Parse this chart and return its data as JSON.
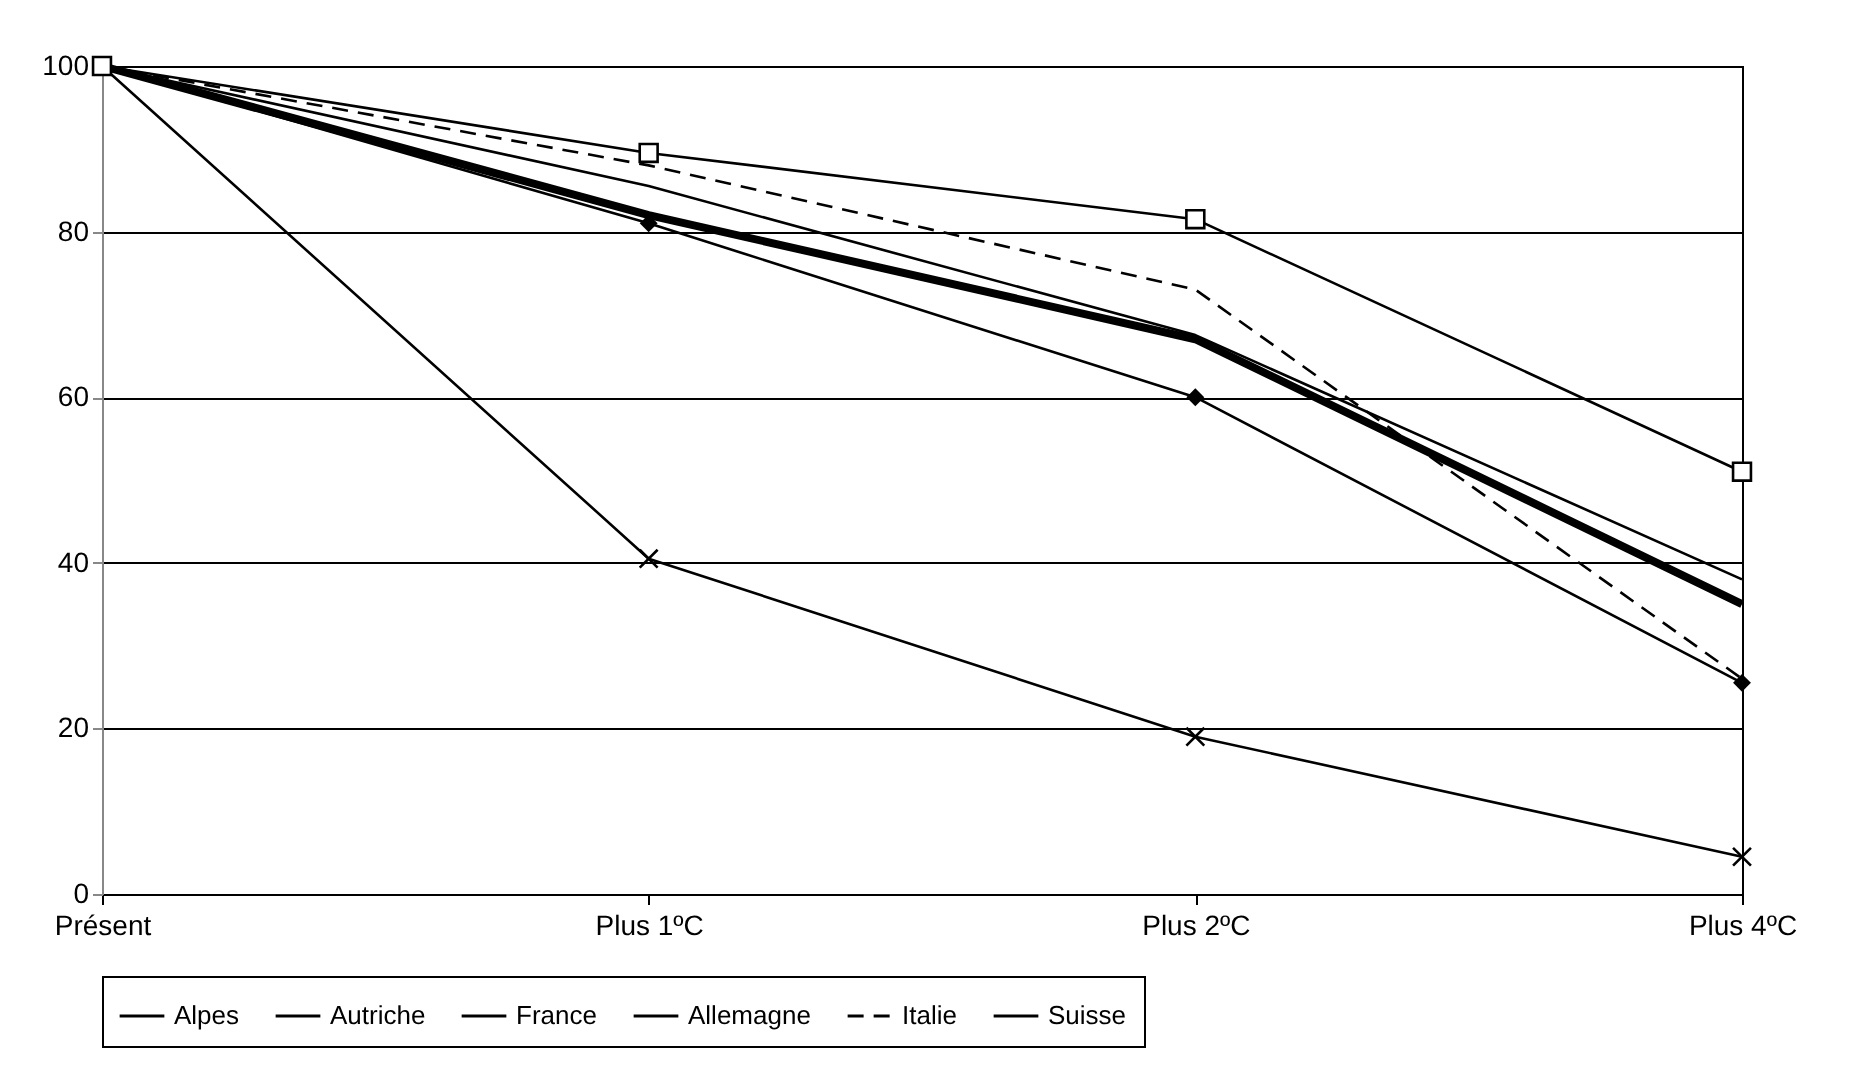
{
  "chart_data": {
    "type": "line",
    "categories": [
      "Présent",
      "Plus 1ºC",
      "Plus 2ºC",
      "Plus 4ºC"
    ],
    "series": [
      {
        "name": "Alpes",
        "color": "#000000",
        "values": [
          100,
          82,
          67,
          35
        ],
        "marker": "none",
        "line_style": "solid"
      },
      {
        "name": "Autriche",
        "color": "#000000",
        "values": [
          100,
          81,
          60,
          25.5
        ],
        "marker": "diamond",
        "line_style": "solid"
      },
      {
        "name": "France",
        "color": "#000000",
        "values": [
          100,
          85.5,
          67.5,
          38
        ],
        "marker": "none",
        "line_style": "solid"
      },
      {
        "name": "Allemagne",
        "color": "#000000",
        "values": [
          100,
          40.5,
          19,
          4.5
        ],
        "marker": "cross",
        "line_style": "solid"
      },
      {
        "name": "Italie",
        "color": "#000000",
        "values": [
          100,
          88,
          73,
          26
        ],
        "marker": "none",
        "line_style": "dashed"
      },
      {
        "name": "Suisse",
        "color": "#000000",
        "values": [
          100,
          89.5,
          81.5,
          51
        ],
        "marker": "square",
        "line_style": "solid"
      }
    ],
    "ylim": [
      0,
      100
    ],
    "yticks": [
      0,
      20,
      40,
      60,
      80,
      100
    ],
    "grid": "y",
    "legend": "bottom"
  }
}
